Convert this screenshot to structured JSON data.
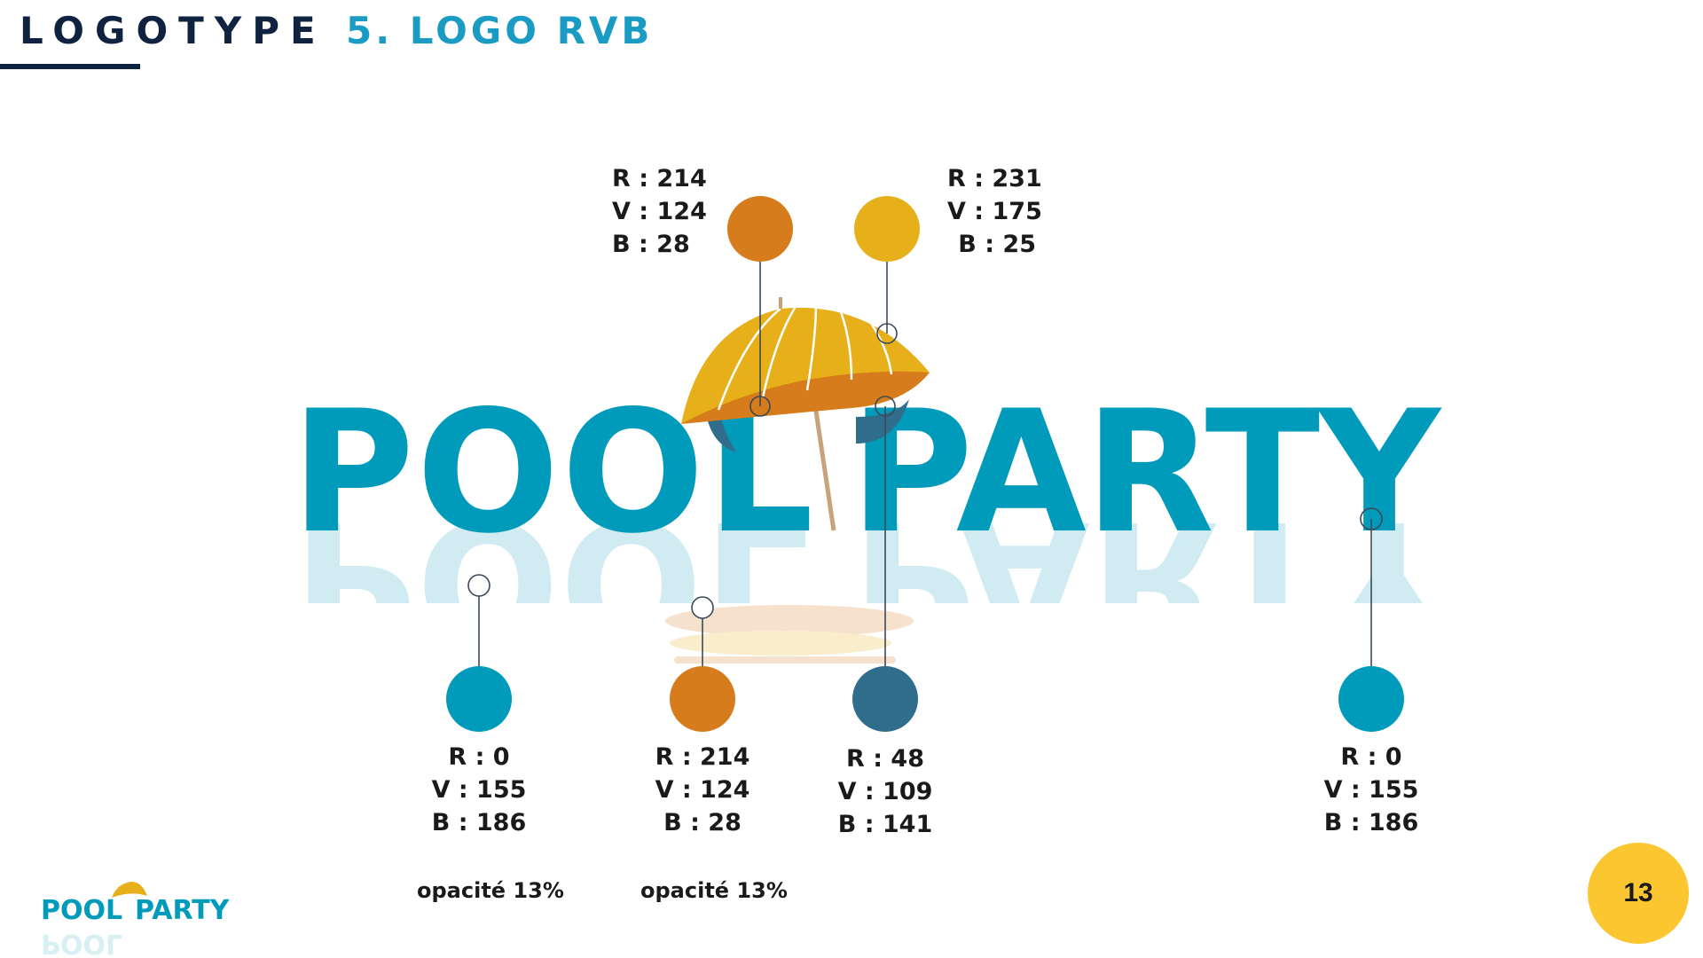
{
  "header": {
    "section": "LOGOTYPE",
    "subtitle": "5. LOGO RVB"
  },
  "logo": {
    "word1": "POOL",
    "word2": "PARTY",
    "main_color": "#009bba",
    "shadow_color": "#306d8d",
    "umbrella_top_color": "#e7af19",
    "umbrella_under_color": "#d67c1c",
    "reflection_opacity_percent": 13
  },
  "swatches": [
    {
      "name": "umbrella-under",
      "color": "#d67c1c",
      "lines": [
        "R : 214",
        "V : 124",
        "B : 28"
      ]
    },
    {
      "name": "umbrella-top",
      "color": "#e7af19",
      "lines": [
        "R : 231",
        "V : 175",
        "B : 25"
      ]
    },
    {
      "name": "reflection-blue",
      "color": "#009bba",
      "lines": [
        "R : 0",
        "V : 155",
        "B : 186"
      ],
      "note": "opacité 13%"
    },
    {
      "name": "reflection-orange",
      "color": "#d67c1c",
      "lines": [
        "R : 214",
        "V : 124",
        "B : 28"
      ],
      "note": "opacité 13%"
    },
    {
      "name": "shadow-blue",
      "color": "#306d8d",
      "lines": [
        "R : 48",
        "V : 109",
        "B : 141"
      ]
    },
    {
      "name": "text-blue",
      "color": "#009bba",
      "lines": [
        "R : 0",
        "V : 155",
        "B : 186"
      ]
    }
  ],
  "footer": {
    "mini_logo_word1": "POOL",
    "mini_logo_word2": "PARTY",
    "page_number": "13",
    "page_badge_color": "#fbc630"
  }
}
